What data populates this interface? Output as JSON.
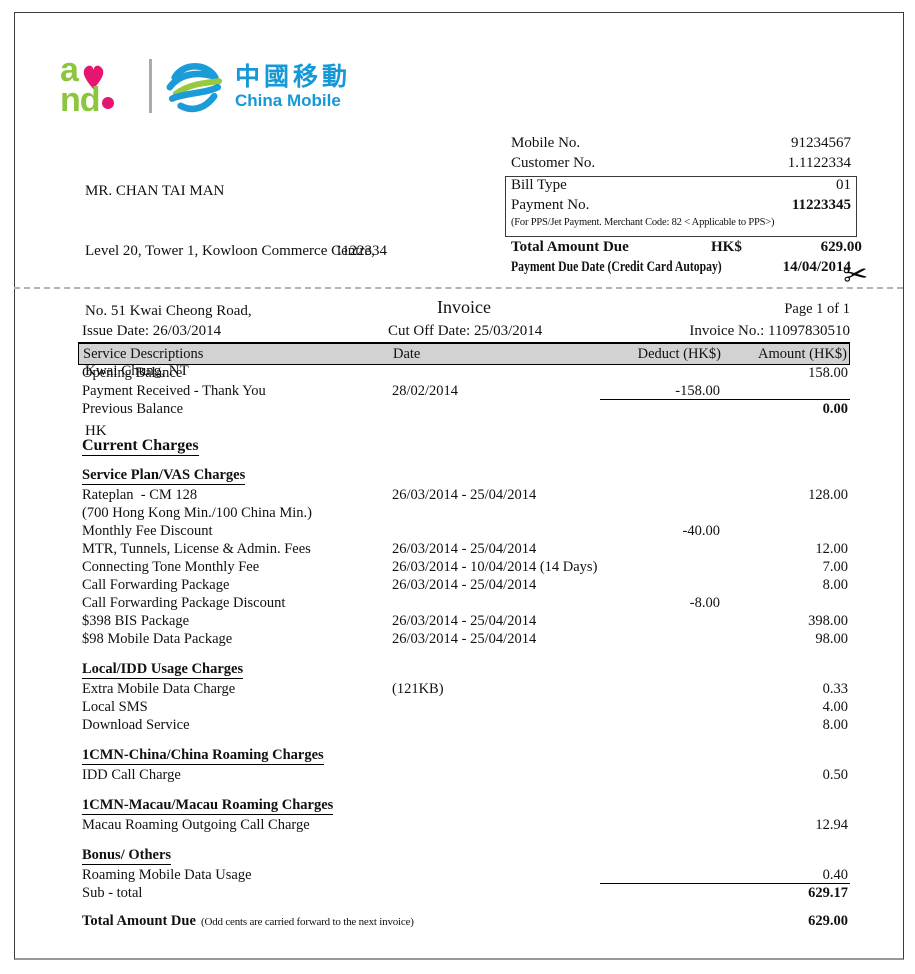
{
  "brand": {
    "and_logo_line1": "a",
    "and_logo_line2": "nd",
    "china_mobile_cn": "中國移動",
    "china_mobile_en": "China Mobile",
    "colors": {
      "green": "#8CC63F",
      "pink": "#E6156F",
      "blue": "#1598D6"
    }
  },
  "recipient": {
    "name": "MR. CHAN TAI MAN",
    "address_lines": [
      "Level 20, Tower 1, Kowloon Commerce Centre,",
      "No. 51 Kwai Cheong Road,",
      "Kwai Chung, NT",
      "HK"
    ],
    "customer_ref": "1122334"
  },
  "account_panel": {
    "mobile_no_label": "Mobile No.",
    "mobile_no": "91234567",
    "customer_no_label": "Customer No.",
    "customer_no": "1.1122334",
    "bill_type_label": "Bill Type",
    "bill_type": "01",
    "payment_no_label": "Payment No.",
    "payment_no": "11223345",
    "pps_note": "(For PPS/Jet Payment. Merchant Code: 82 < Applicable to PPS>)",
    "total_due_label": "Total Amount Due",
    "currency": "HK$",
    "total_due": "629.00",
    "due_date_label": "Payment Due Date (Credit Card Autopay)",
    "due_date": "14/04/2014"
  },
  "invoice": {
    "title": "Invoice",
    "page": "Page 1 of 1",
    "issue_date": "Issue Date: 26/03/2014",
    "cut_off_date": "Cut Off Date: 25/03/2014",
    "invoice_no": "Invoice No.: 11097830510",
    "columns": [
      "Service Descriptions",
      "Date",
      "Deduct (HK$)",
      "Amount (HK$)"
    ],
    "rows": [
      {
        "type": "item",
        "desc": "Opening Balance",
        "amount": "158.00"
      },
      {
        "type": "item",
        "desc": "Payment Received - Thank You",
        "date": "28/02/2014",
        "deduct": "-158.00",
        "rule_below": true
      },
      {
        "type": "item",
        "desc": "Previous Balance",
        "amount": "0.00",
        "amount_bold": true
      },
      {
        "type": "spacer"
      },
      {
        "type": "section_lg",
        "desc": "Current Charges"
      },
      {
        "type": "section",
        "desc": "Service Plan/VAS Charges"
      },
      {
        "type": "item",
        "desc": "Rateplan  - CM 128",
        "date": "26/03/2014 - 25/04/2014",
        "amount": "128.00"
      },
      {
        "type": "item",
        "desc": "(700 Hong Kong Min./100 China Min.)"
      },
      {
        "type": "item",
        "desc": "Monthly Fee Discount",
        "deduct": "-40.00"
      },
      {
        "type": "item",
        "desc": "MTR, Tunnels, License & Admin. Fees",
        "date": "26/03/2014 - 25/04/2014",
        "amount": "12.00"
      },
      {
        "type": "item",
        "desc": "Connecting Tone Monthly Fee",
        "date": "26/03/2014 - 10/04/2014 (14 Days)",
        "amount": "7.00"
      },
      {
        "type": "item",
        "desc": "Call Forwarding Package",
        "date": "26/03/2014 - 25/04/2014",
        "amount": "8.00"
      },
      {
        "type": "item",
        "desc": "Call Forwarding Package Discount",
        "deduct": "-8.00"
      },
      {
        "type": "item",
        "desc": "$398 BIS Package",
        "date": "26/03/2014 - 25/04/2014",
        "amount": "398.00"
      },
      {
        "type": "item",
        "desc": "$98 Mobile Data Package",
        "date": "26/03/2014 - 25/04/2014",
        "amount": "98.00"
      },
      {
        "type": "spacer"
      },
      {
        "type": "section",
        "desc": "Local/IDD Usage Charges"
      },
      {
        "type": "item",
        "desc": "Extra Mobile Data Charge",
        "date": "(121KB)",
        "amount": "0.33"
      },
      {
        "type": "item",
        "desc": "Local SMS",
        "amount": "4.00"
      },
      {
        "type": "item",
        "desc": "Download Service",
        "amount": "8.00"
      },
      {
        "type": "spacer"
      },
      {
        "type": "section",
        "desc": "1CMN-China/China Roaming Charges"
      },
      {
        "type": "item",
        "desc": "IDD Call Charge",
        "amount": "0.50"
      },
      {
        "type": "spacer"
      },
      {
        "type": "section",
        "desc": "1CMN-Macau/Macau Roaming Charges"
      },
      {
        "type": "item",
        "desc": "Macau Roaming Outgoing Call Charge",
        "amount": "12.94"
      },
      {
        "type": "spacer"
      },
      {
        "type": "section",
        "desc": "Bonus/ Others"
      },
      {
        "type": "item",
        "desc": "Roaming Mobile Data Usage",
        "amount": "0.40",
        "rule_below": true
      },
      {
        "type": "item",
        "desc": "Sub - total",
        "amount": "629.17",
        "amount_bold": true
      },
      {
        "type": "spacer"
      },
      {
        "type": "item",
        "desc": "Total Amount Due",
        "desc_bold": true,
        "note": "(Odd cents are carried forward to the next invoice)",
        "amount": "629.00",
        "amount_bold": true
      }
    ]
  },
  "cut_line": {
    "scissors_icon": "✂"
  }
}
